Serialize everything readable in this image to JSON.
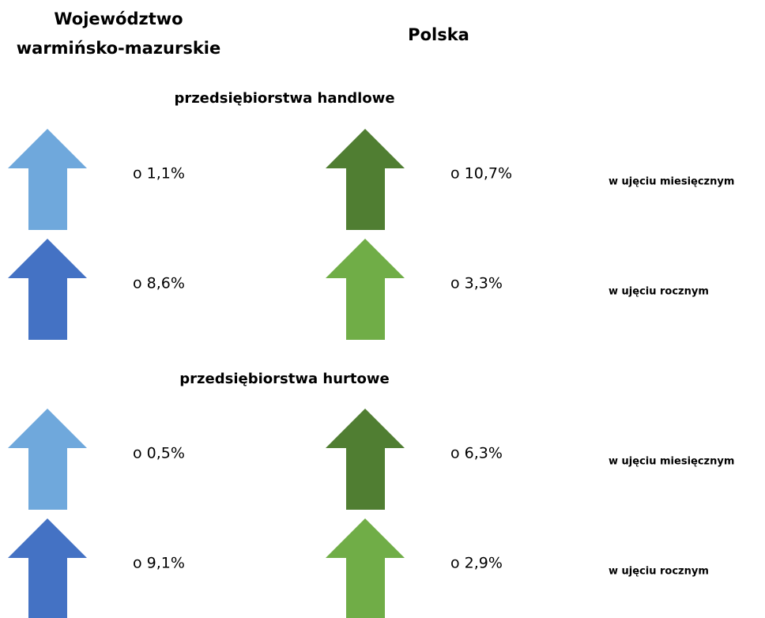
{
  "header": {
    "region": [
      "Województwo",
      "warmińsko-mazurskie"
    ],
    "country": "Polska"
  },
  "sections": [
    {
      "title": "przedsiębiorstwa handlowe",
      "rows": [
        {
          "region": "o 1,1%",
          "country": "o 10,7%",
          "period": "w ujęciu miesięcznym"
        },
        {
          "region": "o 8,6%",
          "country": "o 3,3%",
          "period": "w ujęciu rocznym"
        }
      ]
    },
    {
      "title": "przedsiębiorstwa hurtowe",
      "rows": [
        {
          "region": "o 0,5%",
          "country": "o 6,3%",
          "period": "w ujęciu miesięcznym"
        },
        {
          "region": "o 9,1%",
          "country": "o 2,9%",
          "period": "w ujęciu rocznym"
        }
      ]
    }
  ]
}
